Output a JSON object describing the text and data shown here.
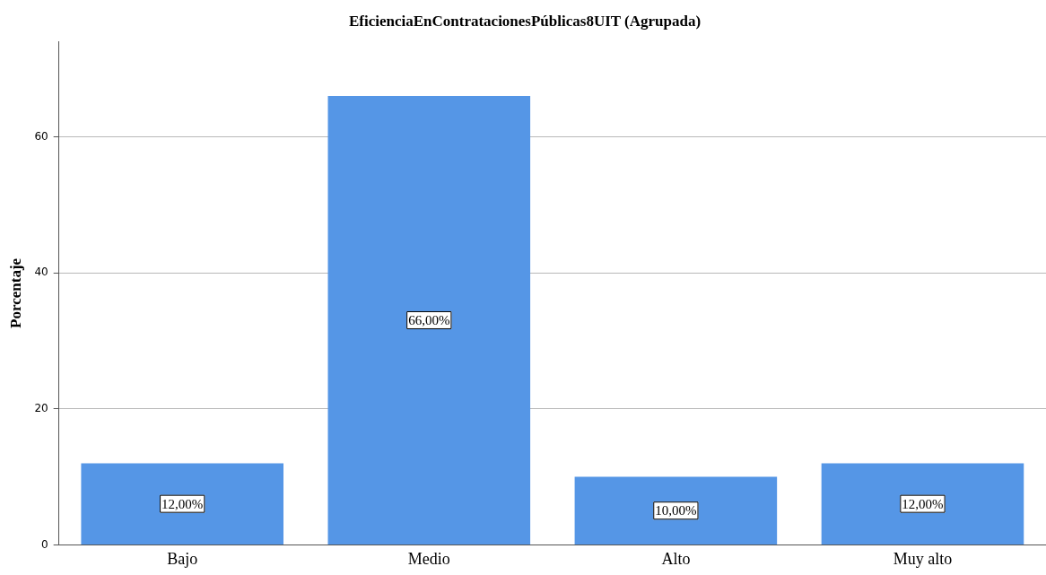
{
  "chart_data": {
    "type": "bar",
    "title": "EficienciaEnContratacionesPúblicas8UIT (Agrupada)",
    "ylabel": "Porcentaje",
    "categories": [
      "Bajo",
      "Medio",
      "Alto",
      "Muy alto"
    ],
    "values": [
      12,
      66,
      10,
      12
    ],
    "value_labels": [
      "12,00%",
      "66,00%",
      "10,00%",
      "12,00%"
    ],
    "color": "#5596e6",
    "ylim": [
      0,
      74
    ],
    "yticks": [
      0,
      20,
      40,
      60
    ],
    "grid": "y",
    "legend": false
  }
}
